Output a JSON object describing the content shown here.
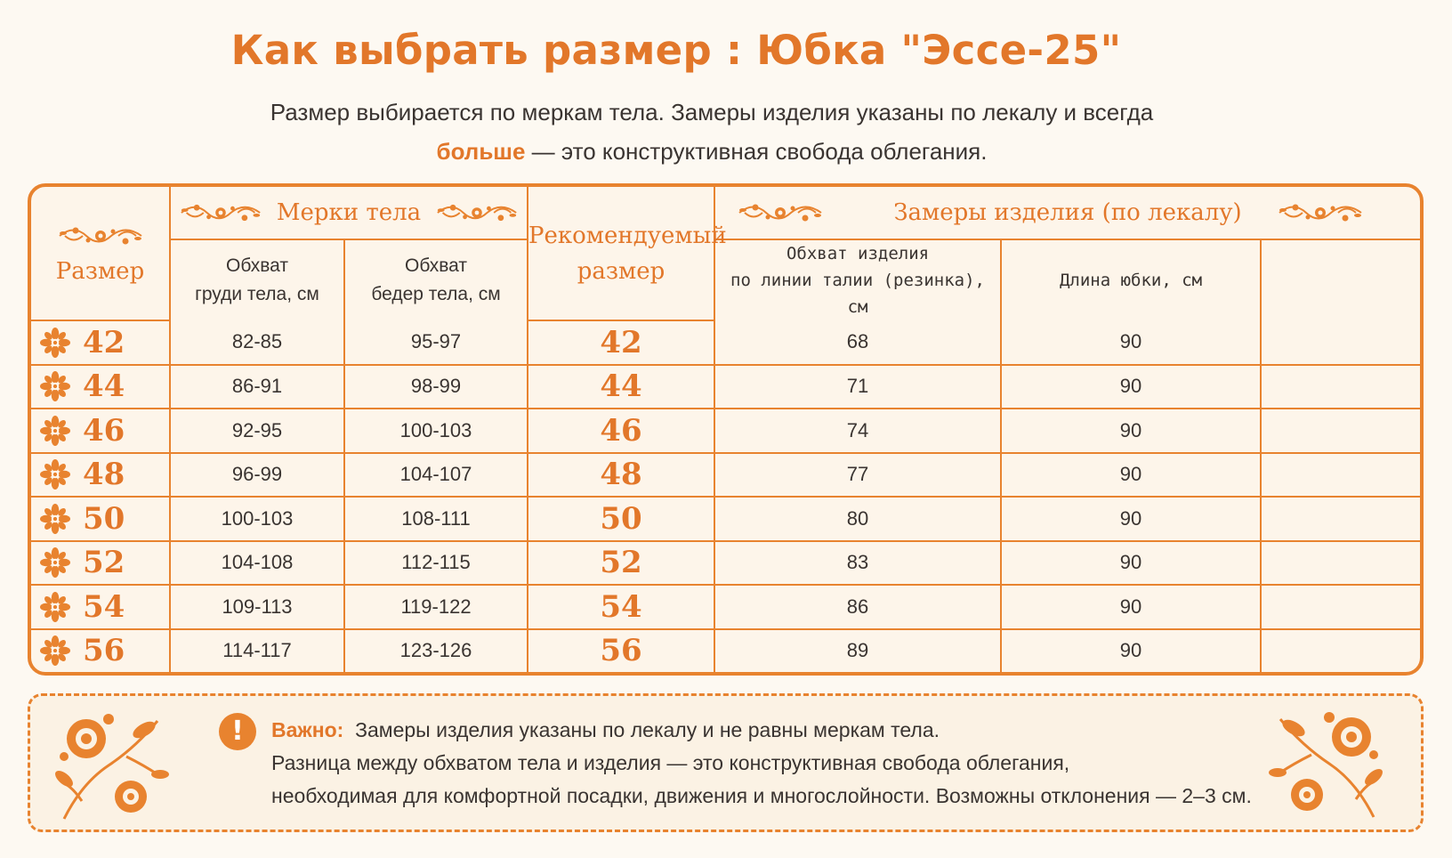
{
  "header": {
    "title": "Как выбрать размер :  Юбка \"Эссе-25\"",
    "subtitle_line1": "Размер выбирается по меркам тела. Замеры изделия указаны по лекалу и всегда",
    "subtitle_accent": "больше",
    "subtitle_line2_rest": " — это конструктивная свобода облегания."
  },
  "table": {
    "size_header": "Размер",
    "body_group_header": "Мерки тела",
    "body_cols": [
      "Обхват груди тела, см",
      "Обхват бедер тела, см"
    ],
    "body_cols_lines": [
      [
        "Обхват",
        "груди тела, см"
      ],
      [
        "Обхват",
        "бедер тела, см"
      ]
    ],
    "recommended_header_lines": [
      "Рекомендуемый",
      "размер"
    ],
    "garment_group_header": "Замеры изделия (по лекалу)",
    "garment_cols_lines": [
      [
        "Обхват изделия",
        "по линии талии (резинка), см"
      ],
      [
        "Длина юбки, см"
      ]
    ],
    "extra_col": "",
    "rows": [
      {
        "size": "42",
        "chest": "82-85",
        "hips": "95-97",
        "rec": "42",
        "waist": "68",
        "length": "90"
      },
      {
        "size": "44",
        "chest": "86-91",
        "hips": "98-99",
        "rec": "44",
        "waist": "71",
        "length": "90"
      },
      {
        "size": "46",
        "chest": "92-95",
        "hips": "100-103",
        "rec": "46",
        "waist": "74",
        "length": "90"
      },
      {
        "size": "48",
        "chest": "96-99",
        "hips": "104-107",
        "rec": "48",
        "waist": "77",
        "length": "90"
      },
      {
        "size": "50",
        "chest": "100-103",
        "hips": "108-111",
        "rec": "50",
        "waist": "80",
        "length": "90"
      },
      {
        "size": "52",
        "chest": "104-108",
        "hips": "112-115",
        "rec": "52",
        "waist": "83",
        "length": "90"
      },
      {
        "size": "54",
        "chest": "109-113",
        "hips": "119-122",
        "rec": "54",
        "waist": "86",
        "length": "90"
      },
      {
        "size": "56",
        "chest": "114-117",
        "hips": "123-126",
        "rec": "56",
        "waist": "89",
        "length": "90"
      }
    ]
  },
  "note": {
    "icon": "exclamation-icon",
    "label": "Важно:",
    "line1": "  Замеры изделия указаны по лекалу и не равны меркам тела.",
    "line2": "Разница между обхватом тела и изделия — это конструктивная свобода облегания,",
    "line3": "необходимая для комфортной посадки, движения и многослойности. Возможны отклонения — 2–3 см."
  },
  "colors": {
    "accent": "#e2772a",
    "border": "#e8832f",
    "text": "#3a3431",
    "background": "#fdf9f2"
  },
  "icons": {
    "row_marker": "flower-icon",
    "header_ornament": "floral-ornament-icon",
    "note_decoration": "floral-bouquet-icon"
  }
}
